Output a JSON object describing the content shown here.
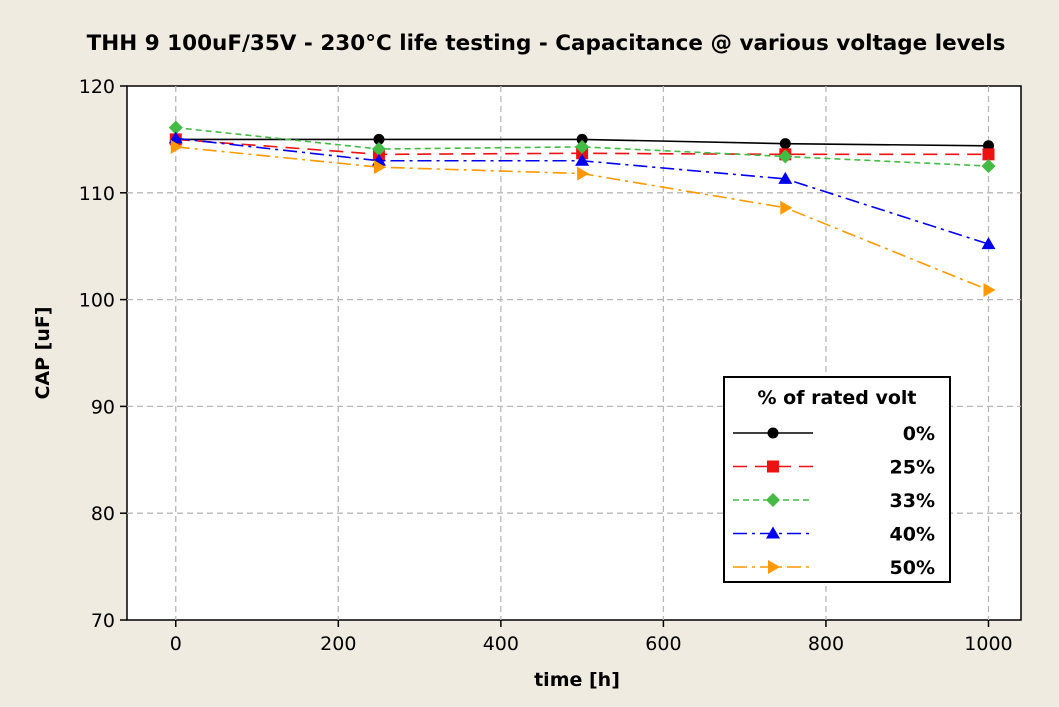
{
  "chart_data": {
    "type": "line",
    "title": "THH 9 100uF/35V - 230°C life testing - Capacitance @ various voltage levels",
    "xlabel": "time [h]",
    "ylabel": "CAP [uF]",
    "xlim": [
      -60,
      1040
    ],
    "ylim": [
      70,
      120
    ],
    "x_ticks": [
      0,
      200,
      400,
      600,
      800,
      1000
    ],
    "y_ticks": [
      70,
      80,
      90,
      100,
      110,
      120
    ],
    "grid": true,
    "legend": {
      "title": "% of rated volt",
      "position": "bottom-right"
    },
    "x": [
      0,
      250,
      500,
      750,
      1000
    ],
    "series": [
      {
        "name": "0%",
        "color": "#000000",
        "marker": "circle",
        "dash": "solid",
        "values": [
          115.0,
          115.0,
          115.0,
          114.6,
          114.4
        ]
      },
      {
        "name": "25%",
        "color": "#ee1111",
        "marker": "square",
        "dash": "dash",
        "values": [
          115.0,
          113.6,
          113.7,
          113.6,
          113.6
        ]
      },
      {
        "name": "33%",
        "color": "#44bb44",
        "marker": "diamond",
        "dash": "dash-short",
        "values": [
          116.1,
          114.1,
          114.3,
          113.4,
          112.5
        ]
      },
      {
        "name": "40%",
        "color": "#0000ee",
        "marker": "triangle-up",
        "dash": "dash-dot",
        "values": [
          115.1,
          113.0,
          113.0,
          111.3,
          105.2
        ]
      },
      {
        "name": "50%",
        "color": "#ff9900",
        "marker": "triangle-right",
        "dash": "dash-dot",
        "values": [
          114.3,
          112.4,
          111.8,
          108.6,
          100.9
        ]
      }
    ]
  }
}
